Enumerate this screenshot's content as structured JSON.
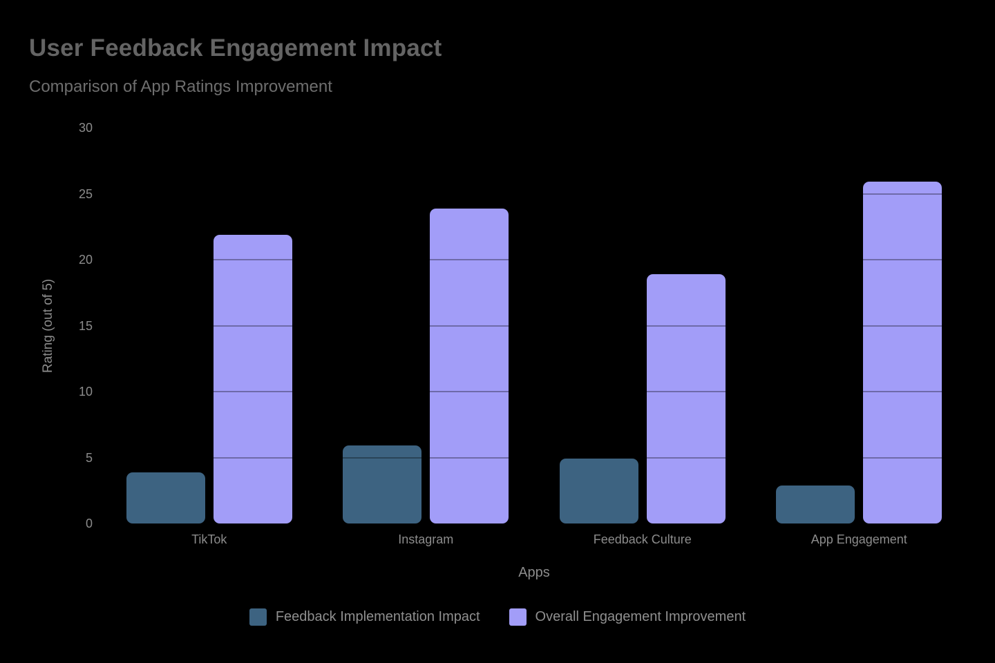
{
  "chart_data": {
    "type": "bar",
    "title": "User Feedback Engagement Impact",
    "subtitle": "Comparison of App Ratings Improvement",
    "xlabel": "Apps",
    "ylabel": "Rating (out of 5)",
    "categories": [
      "TikTok",
      "Instagram",
      "Feedback Culture",
      "App Engagement"
    ],
    "series": [
      {
        "name": "Feedback Implementation Impact",
        "color": "#3d6381",
        "values": [
          3.9,
          5.9,
          4.9,
          2.9
        ]
      },
      {
        "name": "Overall Engagement Improvement",
        "color": "#a29df8",
        "values": [
          21.9,
          23.9,
          18.9,
          25.9
        ]
      }
    ],
    "ylim": [
      0,
      30
    ],
    "yticks": [
      0,
      5,
      10,
      15,
      20,
      25,
      30
    ],
    "grid": "horizontal",
    "legend_position": "bottom"
  },
  "colors": {
    "background": "#000000",
    "title_text": "#646464",
    "subtitle_text": "#6e6e6e",
    "axis_text": "#8c8c8c",
    "legend_text": "#8f8f8f",
    "grid_overlay": "rgba(0,0,0,0.32)"
  }
}
